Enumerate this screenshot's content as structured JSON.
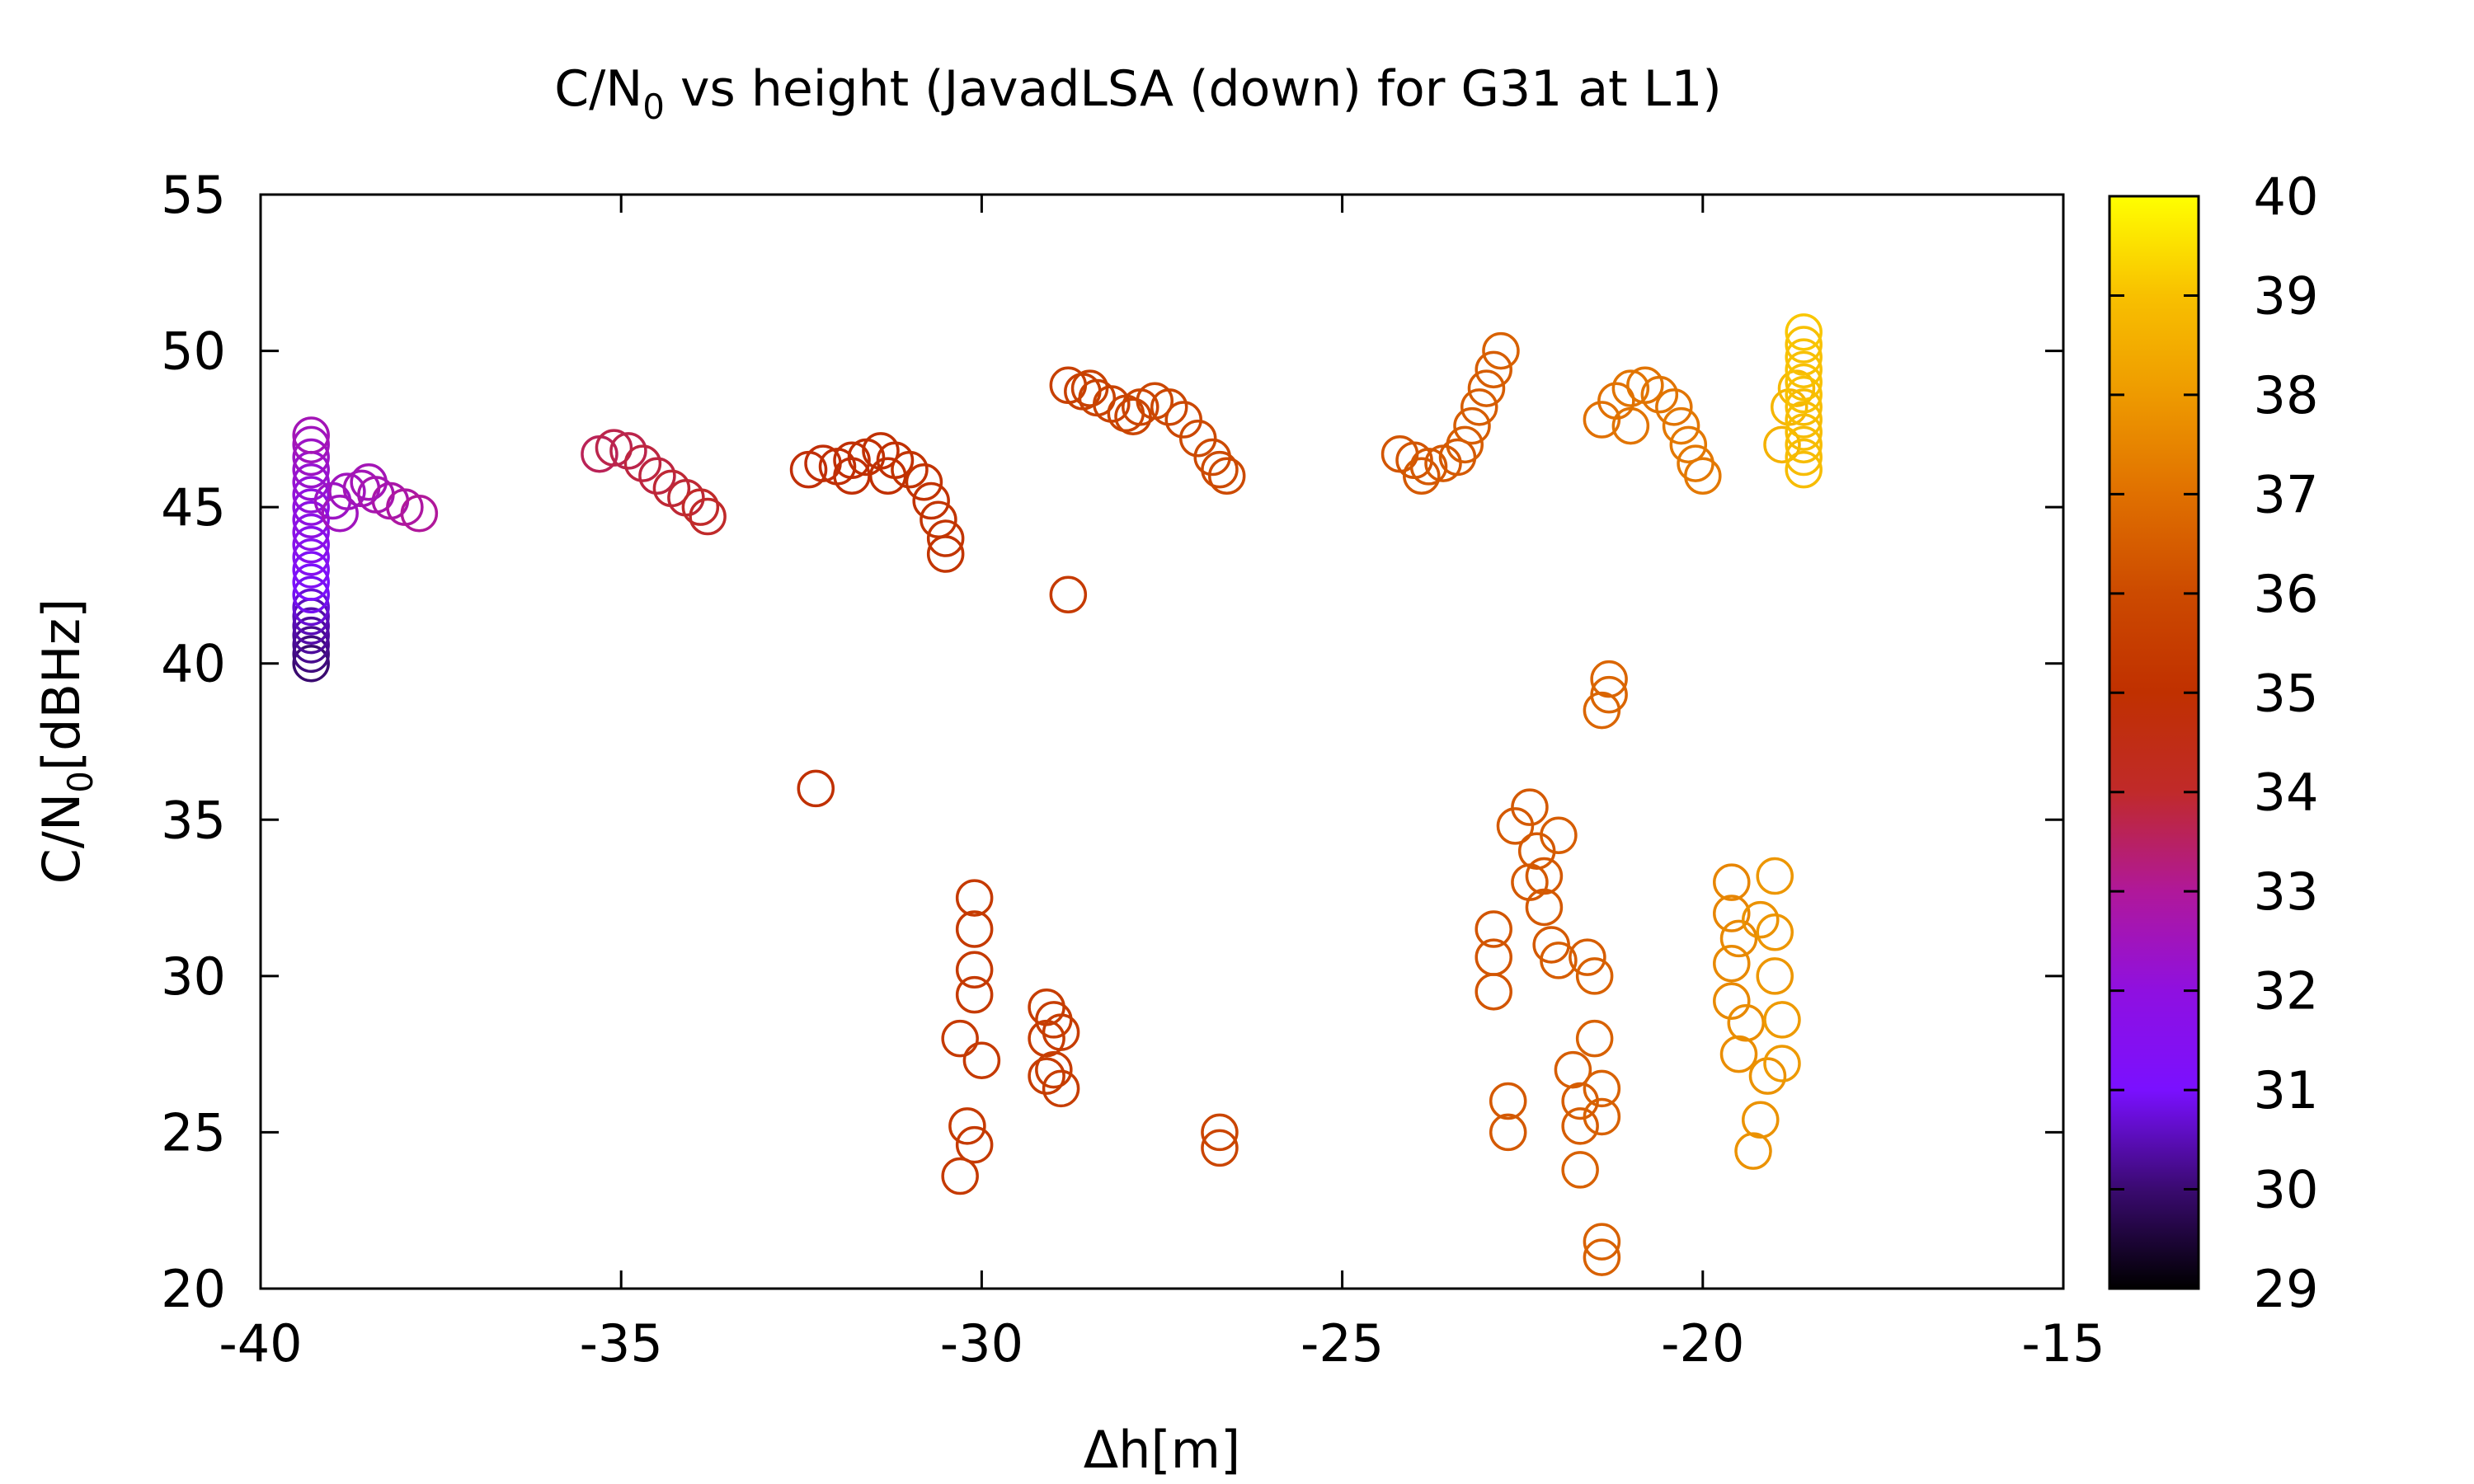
{
  "chart_data": {
    "type": "scatter",
    "title": {
      "prefix": "C/N",
      "subscript": "0",
      "suffix": " vs height (JavadLSA (down) for G31 at L1)"
    },
    "xlabel": "Δh[m]",
    "ylabel": {
      "prefix": "C/N",
      "subscript": "0",
      "suffix": "[dBHz]"
    },
    "xlim": [
      -40,
      -15
    ],
    "ylim": [
      20,
      55
    ],
    "xticks": [
      "-40",
      "-35",
      "-30",
      "-25",
      "-20",
      "-15"
    ],
    "yticks": [
      "20",
      "25",
      "30",
      "35",
      "40",
      "45",
      "50",
      "55"
    ],
    "colorbar": {
      "range": [
        29,
        40
      ],
      "ticks": [
        "29",
        "30",
        "31",
        "32",
        "33",
        "34",
        "35",
        "36",
        "37",
        "38",
        "39",
        "40"
      ],
      "palette": [
        "#000000",
        "#3a0a70",
        "#7a10ff",
        "#8f10e0",
        "#b0189a",
        "#c02a2a",
        "#c03000",
        "#cc4a00",
        "#e07000",
        "#ee9a00",
        "#f8c000",
        "#ffff00"
      ]
    },
    "marker": "open-circle",
    "points": [
      [
        -39.3,
        40.0,
        30.0
      ],
      [
        -39.3,
        40.3,
        30.1
      ],
      [
        -39.3,
        40.6,
        30.2
      ],
      [
        -39.3,
        40.9,
        30.3
      ],
      [
        -39.3,
        41.2,
        30.4
      ],
      [
        -39.3,
        41.5,
        30.5
      ],
      [
        -39.3,
        41.8,
        30.7
      ],
      [
        -39.3,
        42.2,
        30.9
      ],
      [
        -39.3,
        42.6,
        31.1
      ],
      [
        -39.3,
        43.0,
        31.3
      ],
      [
        -39.3,
        43.4,
        31.5
      ],
      [
        -39.3,
        43.8,
        31.6
      ],
      [
        -39.3,
        44.2,
        31.8
      ],
      [
        -39.3,
        44.6,
        31.9
      ],
      [
        -39.3,
        45.0,
        32.0
      ],
      [
        -39.3,
        45.4,
        32.1
      ],
      [
        -39.3,
        45.8,
        32.2
      ],
      [
        -39.3,
        46.2,
        32.3
      ],
      [
        -39.3,
        46.6,
        32.4
      ],
      [
        -39.3,
        47.0,
        32.5
      ],
      [
        -39.3,
        47.3,
        32.6
      ],
      [
        -39.0,
        45.2,
        32.4
      ],
      [
        -38.8,
        45.5,
        32.5
      ],
      [
        -38.6,
        45.6,
        32.6
      ],
      [
        -38.4,
        45.4,
        32.7
      ],
      [
        -38.2,
        45.2,
        32.8
      ],
      [
        -38.0,
        45.0,
        32.9
      ],
      [
        -37.8,
        44.8,
        33.0
      ],
      [
        -38.9,
        44.8,
        32.5
      ],
      [
        -38.5,
        45.8,
        32.6
      ],
      [
        -35.3,
        46.7,
        33.6
      ],
      [
        -35.1,
        46.9,
        33.7
      ],
      [
        -34.9,
        46.8,
        33.7
      ],
      [
        -34.7,
        46.4,
        33.8
      ],
      [
        -34.5,
        46.0,
        33.8
      ],
      [
        -34.3,
        45.6,
        33.9
      ],
      [
        -34.1,
        45.3,
        33.9
      ],
      [
        -33.9,
        45.0,
        34.0
      ],
      [
        -33.8,
        44.7,
        34.0
      ],
      [
        -32.4,
        46.2,
        34.8
      ],
      [
        -32.2,
        46.4,
        34.8
      ],
      [
        -32.0,
        46.3,
        34.9
      ],
      [
        -31.8,
        46.5,
        34.9
      ],
      [
        -31.6,
        46.6,
        35.0
      ],
      [
        -31.4,
        46.8,
        35.0
      ],
      [
        -31.2,
        46.5,
        35.0
      ],
      [
        -31.0,
        46.2,
        35.1
      ],
      [
        -30.8,
        45.8,
        35.1
      ],
      [
        -30.7,
        45.2,
        35.1
      ],
      [
        -30.6,
        44.6,
        35.2
      ],
      [
        -30.5,
        44.0,
        35.2
      ],
      [
        -30.5,
        43.5,
        35.2
      ],
      [
        -31.8,
        46.0,
        34.9
      ],
      [
        -31.3,
        46.0,
        35.0
      ],
      [
        -28.8,
        48.9,
        35.6
      ],
      [
        -28.6,
        48.7,
        35.6
      ],
      [
        -28.4,
        48.5,
        35.7
      ],
      [
        -28.2,
        48.3,
        35.7
      ],
      [
        -28.0,
        48.0,
        35.8
      ],
      [
        -27.8,
        48.2,
        35.8
      ],
      [
        -27.6,
        48.4,
        35.9
      ],
      [
        -27.4,
        48.2,
        35.9
      ],
      [
        -27.2,
        47.8,
        35.9
      ],
      [
        -27.0,
        47.2,
        36.0
      ],
      [
        -26.8,
        46.6,
        36.0
      ],
      [
        -26.7,
        46.2,
        36.0
      ],
      [
        -26.6,
        46.0,
        36.0
      ],
      [
        -28.5,
        48.8,
        35.7
      ],
      [
        -27.9,
        47.9,
        35.8
      ],
      [
        -24.2,
        46.7,
        36.3
      ],
      [
        -24.0,
        46.5,
        36.3
      ],
      [
        -23.8,
        46.3,
        36.4
      ],
      [
        -23.6,
        46.4,
        36.4
      ],
      [
        -23.4,
        46.6,
        36.4
      ],
      [
        -23.3,
        47.0,
        36.5
      ],
      [
        -23.2,
        47.6,
        36.5
      ],
      [
        -23.1,
        48.2,
        36.5
      ],
      [
        -23.0,
        48.8,
        36.5
      ],
      [
        -22.9,
        49.4,
        36.5
      ],
      [
        -22.8,
        50.0,
        36.6
      ],
      [
        -23.9,
        46.0,
        36.4
      ],
      [
        -21.4,
        47.8,
        37.0
      ],
      [
        -21.2,
        48.4,
        37.0
      ],
      [
        -21.0,
        48.8,
        37.1
      ],
      [
        -20.8,
        48.9,
        37.1
      ],
      [
        -20.6,
        48.6,
        37.1
      ],
      [
        -20.4,
        48.2,
        37.1
      ],
      [
        -20.3,
        47.6,
        37.2
      ],
      [
        -20.2,
        47.0,
        37.2
      ],
      [
        -20.1,
        46.4,
        37.2
      ],
      [
        -20.0,
        46.0,
        37.2
      ],
      [
        -21.0,
        47.6,
        37.1
      ],
      [
        -18.9,
        47.0,
        38.6
      ],
      [
        -18.8,
        48.2,
        38.7
      ],
      [
        -18.7,
        48.8,
        38.8
      ],
      [
        -18.6,
        46.2,
        38.9
      ],
      [
        -18.6,
        46.6,
        38.9
      ],
      [
        -18.6,
        47.0,
        38.9
      ],
      [
        -18.6,
        47.4,
        38.9
      ],
      [
        -18.6,
        47.8,
        38.9
      ],
      [
        -18.6,
        48.2,
        38.9
      ],
      [
        -18.6,
        48.6,
        39.0
      ],
      [
        -18.6,
        49.0,
        39.0
      ],
      [
        -18.6,
        49.4,
        39.0
      ],
      [
        -18.6,
        49.8,
        39.0
      ],
      [
        -18.6,
        50.2,
        39.0
      ],
      [
        -18.6,
        50.6,
        39.1
      ],
      [
        -32.3,
        36.0,
        35.0
      ],
      [
        -28.8,
        42.2,
        35.4
      ],
      [
        -30.1,
        32.5,
        35.4
      ],
      [
        -30.1,
        31.5,
        35.4
      ],
      [
        -30.1,
        30.2,
        35.4
      ],
      [
        -30.1,
        29.4,
        35.4
      ],
      [
        -30.0,
        27.3,
        35.4
      ],
      [
        -30.3,
        28.0,
        35.4
      ],
      [
        -30.2,
        25.2,
        35.4
      ],
      [
        -30.1,
        24.6,
        35.4
      ],
      [
        -30.3,
        23.6,
        35.4
      ],
      [
        -29.1,
        29.0,
        35.5
      ],
      [
        -29.0,
        28.6,
        35.5
      ],
      [
        -29.1,
        28.0,
        35.5
      ],
      [
        -29.0,
        27.0,
        35.5
      ],
      [
        -29.1,
        26.8,
        35.5
      ],
      [
        -28.9,
        26.4,
        35.5
      ],
      [
        -28.9,
        28.2,
        35.5
      ],
      [
        -26.7,
        25.0,
        35.8
      ],
      [
        -26.7,
        24.5,
        35.8
      ],
      [
        -22.9,
        31.5,
        36.3
      ],
      [
        -22.9,
        30.6,
        36.3
      ],
      [
        -22.9,
        29.5,
        36.3
      ],
      [
        -22.7,
        26.0,
        36.4
      ],
      [
        -22.7,
        25.0,
        36.4
      ],
      [
        -22.6,
        34.8,
        36.4
      ],
      [
        -22.4,
        35.4,
        36.4
      ],
      [
        -22.3,
        34.0,
        36.4
      ],
      [
        -22.2,
        33.2,
        36.4
      ],
      [
        -22.2,
        32.2,
        36.4
      ],
      [
        -22.1,
        31.0,
        36.4
      ],
      [
        -22.0,
        30.5,
        36.5
      ],
      [
        -22.4,
        33.0,
        36.4
      ],
      [
        -22.0,
        34.5,
        36.5
      ],
      [
        -21.8,
        27.0,
        36.5
      ],
      [
        -21.7,
        26.0,
        36.5
      ],
      [
        -21.7,
        25.2,
        36.5
      ],
      [
        -21.7,
        23.8,
        36.6
      ],
      [
        -21.6,
        30.6,
        36.5
      ],
      [
        -21.5,
        30.0,
        36.6
      ],
      [
        -21.5,
        28.0,
        36.6
      ],
      [
        -21.4,
        26.4,
        36.6
      ],
      [
        -21.4,
        25.5,
        36.6
      ],
      [
        -21.4,
        21.5,
        36.6
      ],
      [
        -21.4,
        21.0,
        36.6
      ],
      [
        -21.3,
        39.5,
        36.7
      ],
      [
        -21.4,
        38.5,
        36.7
      ],
      [
        -21.3,
        39.0,
        36.7
      ],
      [
        -19.6,
        33.0,
        37.5
      ],
      [
        -19.6,
        32.0,
        37.5
      ],
      [
        -19.5,
        31.2,
        37.6
      ],
      [
        -19.6,
        30.4,
        37.6
      ],
      [
        -19.6,
        29.2,
        37.6
      ],
      [
        -19.5,
        27.5,
        37.7
      ],
      [
        -19.4,
        28.5,
        37.7
      ],
      [
        -19.3,
        24.4,
        37.8
      ],
      [
        -19.2,
        25.4,
        37.8
      ],
      [
        -19.1,
        26.8,
        37.8
      ],
      [
        -19.0,
        30.0,
        37.9
      ],
      [
        -19.0,
        31.4,
        37.9
      ],
      [
        -19.0,
        33.2,
        37.9
      ],
      [
        -18.9,
        28.6,
        38.0
      ],
      [
        -18.9,
        27.2,
        38.0
      ],
      [
        -19.2,
        31.8,
        37.8
      ]
    ]
  }
}
